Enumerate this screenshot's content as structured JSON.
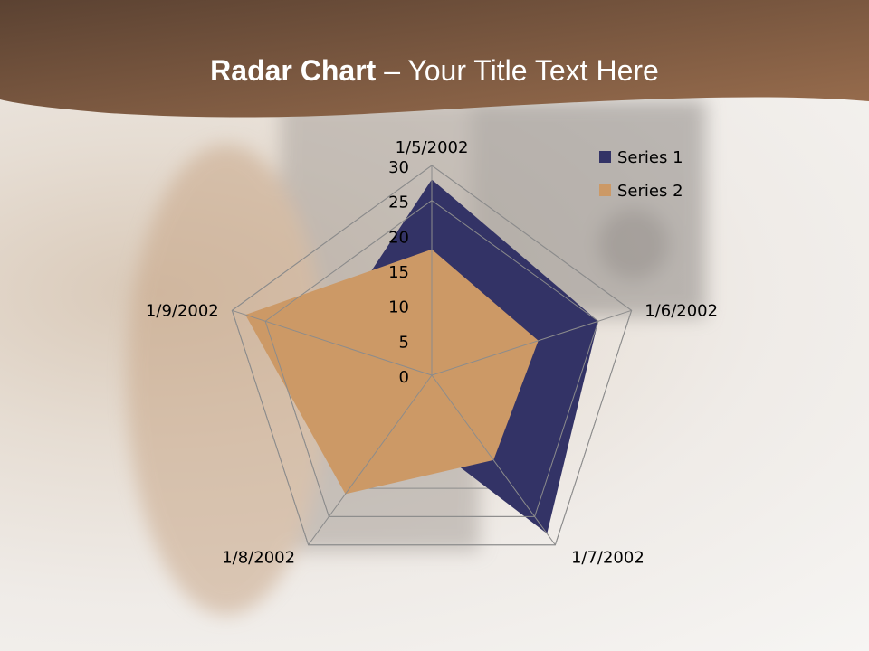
{
  "slide": {
    "title_bold": "Radar Chart",
    "title_rest": " – Your Title Text Here"
  },
  "colors": {
    "header_dark": "#5b4232",
    "header_light": "#9a6e4e",
    "series1": "#333366",
    "series2": "#cc9966",
    "grid": "#8c8c8c"
  },
  "chart_data": {
    "type": "radar",
    "categories": [
      "1/5/2002",
      "1/6/2002",
      "1/7/2002",
      "1/8/2002",
      "1/9/2002"
    ],
    "series": [
      {
        "name": "Series 1",
        "values": [
          28,
          25,
          28,
          8,
          16
        ]
      },
      {
        "name": "Series 2",
        "values": [
          18,
          16,
          15,
          21,
          28
        ]
      }
    ],
    "rlim": [
      0,
      30
    ],
    "ticks": [
      "0",
      "5",
      "10",
      "15",
      "20",
      "25",
      "30"
    ],
    "legend": "top-right",
    "grid": true
  }
}
